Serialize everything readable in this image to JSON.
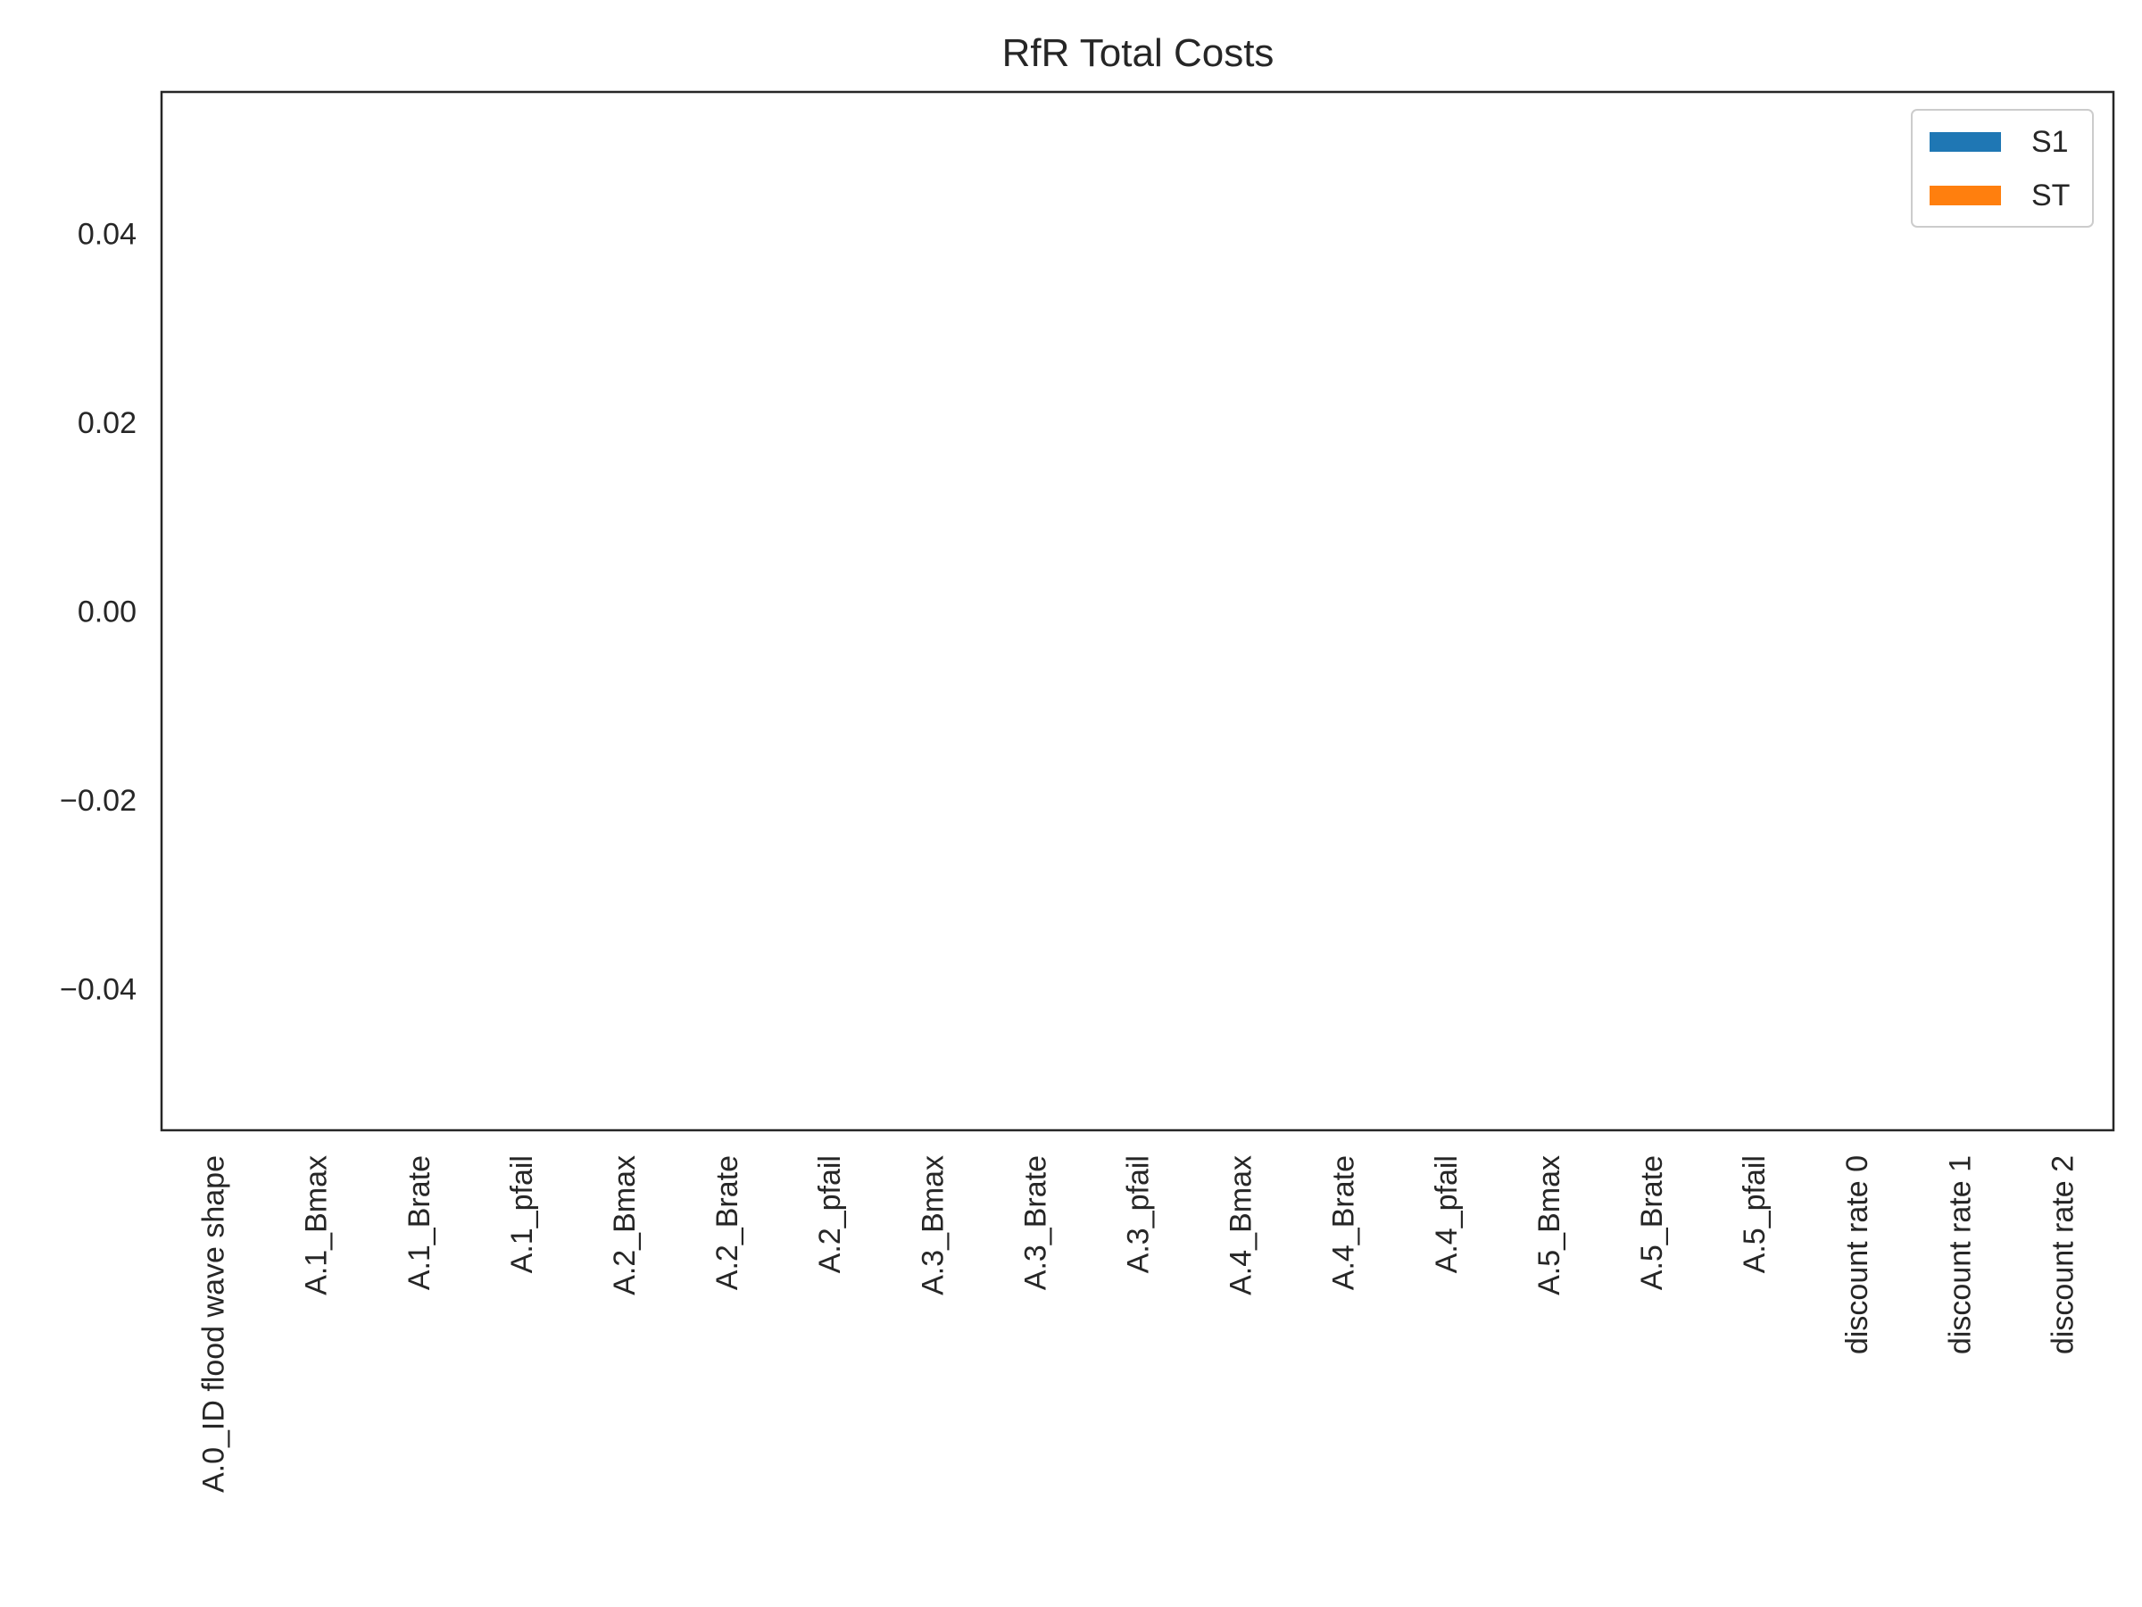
{
  "chart_data": {
    "type": "bar",
    "title": "RfR Total Costs",
    "xlabel": "",
    "ylabel": "",
    "categories": [
      "A.0_ID flood wave shape",
      "A.1_Bmax",
      "A.1_Brate",
      "A.1_pfail",
      "A.2_Bmax",
      "A.2_Brate",
      "A.2_pfail",
      "A.3_Bmax",
      "A.3_Brate",
      "A.3_pfail",
      "A.4_Bmax",
      "A.4_Brate",
      "A.4_pfail",
      "A.5_Bmax",
      "A.5_Brate",
      "A.5_pfail",
      "discount rate 0",
      "discount rate 1",
      "discount rate 2"
    ],
    "series": [
      {
        "name": "S1",
        "color": "#1f77b4",
        "values": [
          0,
          0,
          0,
          0,
          0,
          0,
          0,
          0,
          0,
          0,
          0,
          0,
          0,
          0,
          0,
          0,
          0,
          0,
          0
        ]
      },
      {
        "name": "ST",
        "color": "#ff7f0e",
        "values": [
          0,
          0,
          0,
          0,
          0,
          0,
          0,
          0,
          0,
          0,
          0,
          0,
          0,
          0,
          0,
          0,
          0,
          0,
          0
        ]
      }
    ],
    "ylim": [
      -0.055,
      0.055
    ],
    "yticks": [
      -0.04,
      -0.02,
      0.0,
      0.02,
      0.04
    ],
    "ytick_labels": [
      "−0.04",
      "−0.02",
      "0.00",
      "0.02",
      "0.04"
    ],
    "grid": false,
    "legend_position": "top-right"
  }
}
